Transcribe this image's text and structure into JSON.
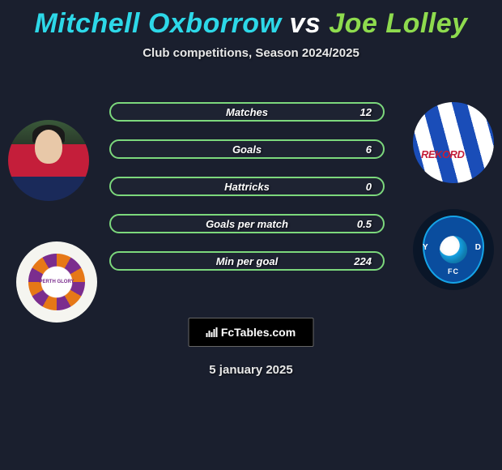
{
  "title": {
    "player1": "Mitchell Oxborrow",
    "vs": "vs",
    "player2": "Joe Lolley",
    "player1_color": "#2dd8e8",
    "vs_color": "#ffffff",
    "player2_color": "#8edb4e"
  },
  "subtitle": "Club competitions, Season 2024/2025",
  "stats": [
    {
      "label": "Matches",
      "value": "12"
    },
    {
      "label": "Goals",
      "value": "6"
    },
    {
      "label": "Hattricks",
      "value": "0"
    },
    {
      "label": "Goals per match",
      "value": "0.5"
    },
    {
      "label": "Min per goal",
      "value": "224"
    }
  ],
  "bar_style": {
    "border_color": "#7cd87c",
    "border_width": 2,
    "height": 24,
    "border_radius": 12,
    "gap": 22,
    "label_fontsize": 13
  },
  "brand": {
    "label": "FcTables.com"
  },
  "date": "5 january 2025",
  "right_avatar_label": "REKORD",
  "left_badge_text": "PERTH GLORY",
  "right_badge_text": "FC",
  "colors": {
    "background": "#1a1f2e",
    "accent_green": "#7cd87c"
  }
}
